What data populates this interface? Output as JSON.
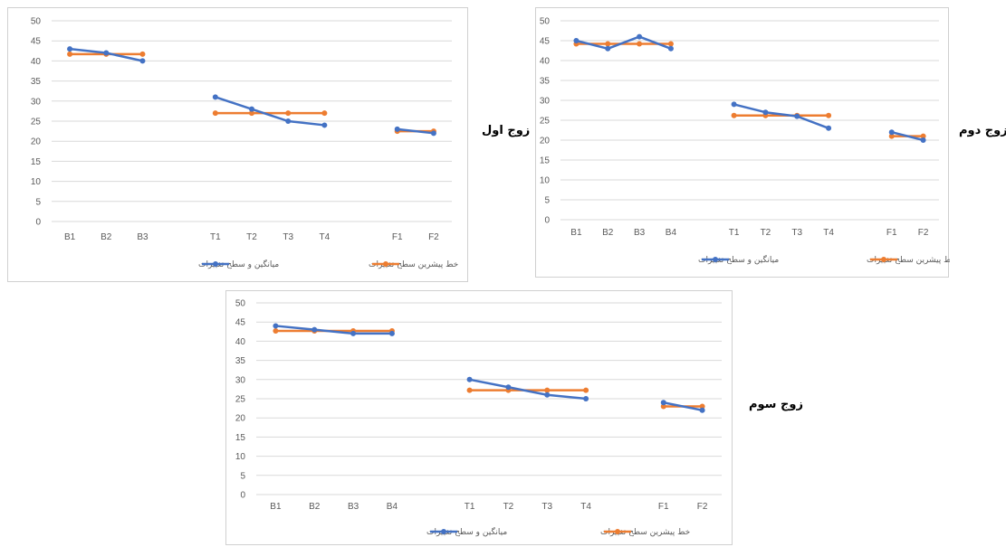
{
  "colors": {
    "series_mean": "#4472c4",
    "series_baseline": "#ed7d31",
    "grid": "#d9d9d9",
    "tick_text": "#595959"
  },
  "labels": {
    "pair1": "زوج اول",
    "pair2": "زوج دوم",
    "pair3": "زوج سوم"
  },
  "chart_data": [
    {
      "type": "line",
      "title": "",
      "categories": [
        "B1",
        "B2",
        "B3",
        "",
        "T1",
        "T2",
        "T3",
        "T4",
        "",
        "F1",
        "F2"
      ],
      "ylim": [
        0,
        50
      ],
      "yticks": [
        0,
        5,
        10,
        15,
        20,
        25,
        30,
        35,
        40,
        45,
        50
      ],
      "grid": true,
      "legend": "bottom",
      "series": [
        {
          "name": "میانگین و سطح تغییرات",
          "color": "#4472c4",
          "segments": [
            [
              [
                0,
                43
              ],
              [
                1,
                42
              ],
              [
                2,
                40
              ]
            ],
            [
              [
                4,
                31
              ],
              [
                5,
                28
              ],
              [
                6,
                25
              ],
              [
                7,
                24
              ]
            ],
            [
              [
                9,
                23
              ],
              [
                10,
                22
              ]
            ]
          ]
        },
        {
          "name": "خط پیشرین سطح تغییرات",
          "color": "#ed7d31",
          "segments": [
            [
              [
                0,
                41.7
              ],
              [
                1,
                41.7
              ],
              [
                2,
                41.7
              ]
            ],
            [
              [
                4,
                27
              ],
              [
                5,
                27
              ],
              [
                6,
                27
              ],
              [
                7,
                27
              ]
            ],
            [
              [
                9,
                22.5
              ],
              [
                10,
                22.5
              ]
            ]
          ]
        }
      ]
    },
    {
      "type": "line",
      "title": "",
      "categories": [
        "B1",
        "B2",
        "B3",
        "B4",
        "",
        "T1",
        "T2",
        "T3",
        "T4",
        "",
        "F1",
        "F2"
      ],
      "ylim": [
        0,
        50
      ],
      "yticks": [
        0,
        5,
        10,
        15,
        20,
        25,
        30,
        35,
        40,
        45,
        50
      ],
      "grid": true,
      "legend": "bottom",
      "series": [
        {
          "name": "میانگین و سطح تغییرات",
          "color": "#4472c4",
          "segments": [
            [
              [
                0,
                45
              ],
              [
                1,
                43
              ],
              [
                2,
                46
              ],
              [
                3,
                43
              ]
            ],
            [
              [
                5,
                29
              ],
              [
                6,
                27
              ],
              [
                7,
                26
              ],
              [
                8,
                23
              ]
            ],
            [
              [
                10,
                22
              ],
              [
                11,
                20
              ]
            ]
          ]
        },
        {
          "name": "خط پیشرین سطح تغییرات",
          "color": "#ed7d31",
          "segments": [
            [
              [
                0,
                44.2
              ],
              [
                1,
                44.2
              ],
              [
                2,
                44.2
              ],
              [
                3,
                44.2
              ]
            ],
            [
              [
                5,
                26.2
              ],
              [
                6,
                26.2
              ],
              [
                7,
                26.2
              ],
              [
                8,
                26.2
              ]
            ],
            [
              [
                10,
                21
              ],
              [
                11,
                21
              ]
            ]
          ]
        }
      ]
    },
    {
      "type": "line",
      "title": "",
      "categories": [
        "B1",
        "B2",
        "B3",
        "B4",
        "",
        "T1",
        "T2",
        "T3",
        "T4",
        "",
        "F1",
        "F2"
      ],
      "ylim": [
        0,
        50
      ],
      "yticks": [
        0,
        5,
        10,
        15,
        20,
        25,
        30,
        35,
        40,
        45,
        50
      ],
      "grid": true,
      "legend": "bottom",
      "series": [
        {
          "name": "میانگین و سطح تغییرات",
          "color": "#4472c4",
          "segments": [
            [
              [
                0,
                44
              ],
              [
                1,
                43
              ],
              [
                2,
                42
              ],
              [
                3,
                42
              ]
            ],
            [
              [
                5,
                30
              ],
              [
                6,
                28
              ],
              [
                7,
                26
              ],
              [
                8,
                25
              ]
            ],
            [
              [
                10,
                24
              ],
              [
                11,
                22
              ]
            ]
          ]
        },
        {
          "name": "خط پیشرین سطح تغییرات",
          "color": "#ed7d31",
          "segments": [
            [
              [
                0,
                42.7
              ],
              [
                1,
                42.7
              ],
              [
                2,
                42.7
              ],
              [
                3,
                42.7
              ]
            ],
            [
              [
                5,
                27.2
              ],
              [
                6,
                27.2
              ],
              [
                7,
                27.2
              ],
              [
                8,
                27.2
              ]
            ],
            [
              [
                10,
                23
              ],
              [
                11,
                23
              ]
            ]
          ]
        }
      ]
    }
  ]
}
